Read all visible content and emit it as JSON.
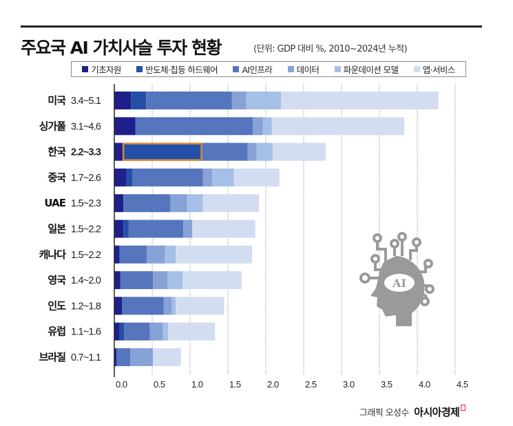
{
  "header": {
    "title": "주요국 AI 가치사슬 투자 현황",
    "subtitle": "(단위: GDP 대비 %, 2010~2024년 누적)"
  },
  "footer": {
    "credit": "그래픽 오성수",
    "brand": "아시아경제"
  },
  "chart_data": {
    "type": "bar",
    "orientation": "horizontal",
    "stacked": true,
    "title": "주요국 AI 가치사슬 투자 현황",
    "unit": "(단위: GDP 대비 %, 2010~2024년 누적)",
    "xlim": [
      0,
      4.5
    ],
    "xticks": [
      "0.0",
      "0.5",
      "1.0",
      "1.5",
      "2.0",
      "2.5",
      "3.0",
      "3.5",
      "4.0",
      "4.5"
    ],
    "grid": "vertical dotted",
    "legend_position": "top",
    "highlight": {
      "category": "한국",
      "series": "반도체·칩등 하드웨어",
      "color": "#e08a2c"
    },
    "categories": [
      "미국",
      "싱가폴",
      "한국",
      "중국",
      "UAE",
      "일본",
      "캐나다",
      "영국",
      "인도",
      "유럽",
      "브라질"
    ],
    "ranges": [
      "3.4~5.1",
      "3.1~4.6",
      "2.2~3.3",
      "1.7~2.6",
      "1.5~2.3",
      "1.5~2.2",
      "1.5~2.2",
      "1.4~2.0",
      "1.2~1.8",
      "1.1~1.6",
      "0.7~1.1"
    ],
    "series": [
      {
        "name": "기초자원",
        "color": "#1f1f8c",
        "values": [
          0.22,
          0.28,
          0.11,
          0.16,
          0.12,
          0.12,
          0.07,
          0.08,
          0.1,
          0.07,
          0.03
        ]
      },
      {
        "name": "반도체·칩등 하드웨어",
        "color": "#2350a6",
        "values": [
          0.2,
          0,
          1.05,
          0.08,
          0,
          0.07,
          0,
          0,
          0,
          0.06,
          0
        ]
      },
      {
        "name": "AI인프라",
        "color": "#5575bd",
        "values": [
          1.13,
          1.55,
          0.6,
          0.93,
          0.62,
          0.72,
          0.36,
          0.43,
          0.55,
          0.34,
          0.18
        ]
      },
      {
        "name": "데이터",
        "color": "#87a2d6",
        "values": [
          0.19,
          0.13,
          0.12,
          0.12,
          0.22,
          0.12,
          0.24,
          0.19,
          0.11,
          0.17,
          0.3
        ]
      },
      {
        "name": "파운데이션 모델",
        "color": "#a5bfe6",
        "values": [
          0.46,
          0.12,
          0.21,
          0.29,
          0.21,
          0,
          0.14,
          0.2,
          0.05,
          0.07,
          0
        ]
      },
      {
        "name": "앱·서비스",
        "color": "#d3ddf1",
        "values": [
          2.08,
          1.75,
          0.7,
          0.6,
          0.74,
          0.83,
          1.01,
          0.78,
          0.64,
          0.62,
          0.37
        ]
      }
    ]
  }
}
